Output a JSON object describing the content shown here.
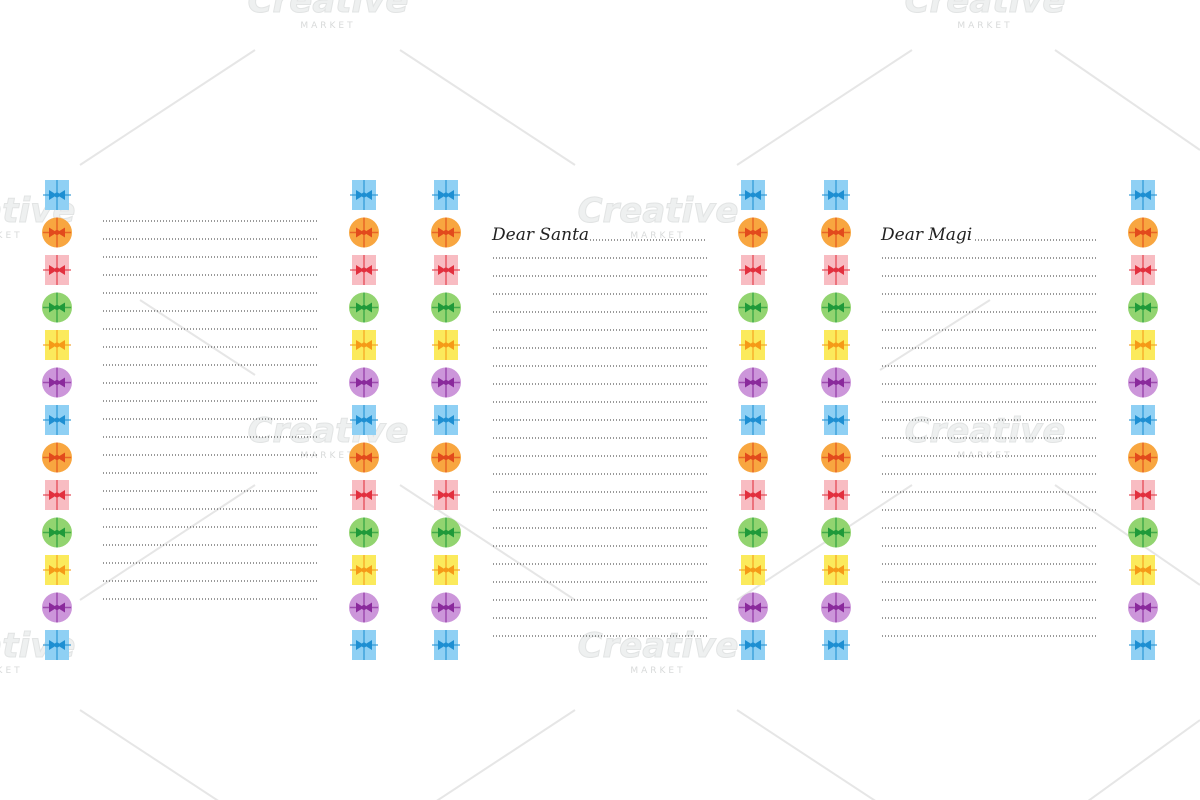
{
  "letters": [
    {
      "greeting": "Dear Santa"
    },
    {
      "greeting": "Dear Magi"
    }
  ],
  "watermark": {
    "brand": "Creative",
    "tagline": "MARKET"
  }
}
